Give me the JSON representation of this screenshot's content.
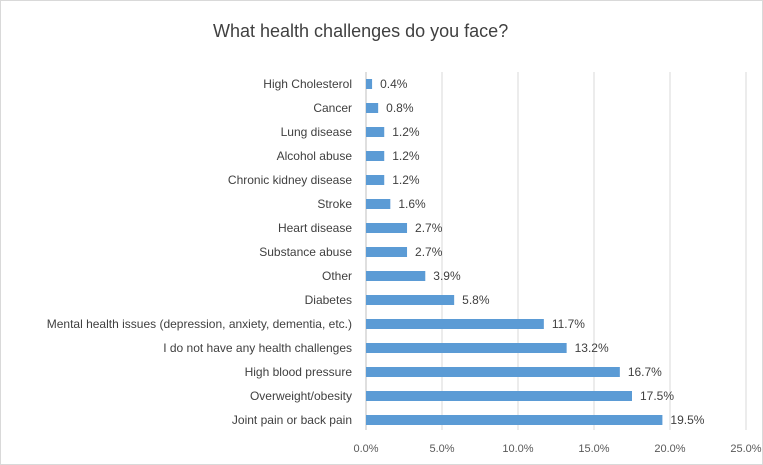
{
  "chart_data": {
    "type": "bar",
    "orientation": "horizontal",
    "title": "What health challenges do you face?",
    "xlabel": "",
    "ylabel": "",
    "categories": [
      "High Cholesterol",
      "Cancer",
      "Lung disease",
      "Alcohol abuse",
      "Chronic kidney disease",
      "Stroke",
      "Heart disease",
      "Substance abuse",
      "Other",
      "Diabetes",
      "Mental health issues (depression, anxiety, dementia, etc.)",
      "I do not have any health challenges",
      "High blood pressure",
      "Overweight/obesity",
      "Joint pain or back pain"
    ],
    "values": [
      0.4,
      0.8,
      1.2,
      1.2,
      1.2,
      1.6,
      2.7,
      2.7,
      3.9,
      5.8,
      11.7,
      13.2,
      16.7,
      17.5,
      19.5
    ],
    "data_labels": [
      "0.4%",
      "0.8%",
      "1.2%",
      "1.2%",
      "1.2%",
      "1.6%",
      "2.7%",
      "2.7%",
      "3.9%",
      "5.8%",
      "11.7%",
      "13.2%",
      "16.7%",
      "17.5%",
      "19.5%"
    ],
    "xlim": [
      0,
      25
    ],
    "x_ticks": [
      0,
      5,
      10,
      15,
      20,
      25
    ],
    "x_tick_labels": [
      "0.0%",
      "5.0%",
      "10.0%",
      "15.0%",
      "20.0%",
      "25.0%"
    ],
    "grid": true,
    "legend": "none",
    "colors": {
      "bar": "#5b9bd5",
      "grid": "#d9d9d9",
      "text": "#404040"
    }
  }
}
